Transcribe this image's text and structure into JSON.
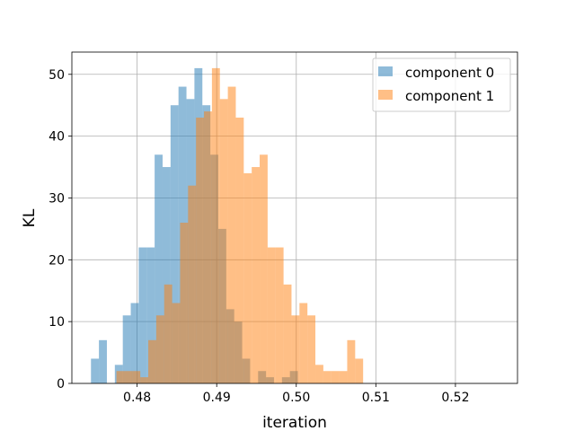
{
  "chart_data": {
    "type": "histogram",
    "xlabel": "iteration",
    "ylabel": "KL",
    "xlim": [
      0.4718,
      0.5278
    ],
    "ylim": [
      0,
      53.6
    ],
    "grid": true,
    "legend_position": "top-right",
    "x_ticks": [
      0.48,
      0.49,
      0.5,
      0.51,
      0.52
    ],
    "x_tick_labels": [
      "0.48",
      "0.49",
      "0.50",
      "0.51",
      "0.52"
    ],
    "y_ticks": [
      0,
      10,
      20,
      30,
      40,
      50
    ],
    "y_tick_labels": [
      "0",
      "10",
      "20",
      "30",
      "40",
      "50"
    ],
    "series": [
      {
        "name": "component 0",
        "color": "#1f77b4",
        "opacity": 0.5,
        "bin_start": 0.4742,
        "bin_width": 0.001,
        "values": [
          4,
          7,
          0,
          3,
          11,
          13,
          22,
          22,
          37,
          35,
          45,
          48,
          46,
          51,
          45,
          37,
          25,
          12,
          10,
          4,
          0,
          2,
          1,
          0,
          1,
          2
        ]
      },
      {
        "name": "component 1",
        "color": "#ff7f0e",
        "opacity": 0.5,
        "bin_start": 0.4774,
        "bin_width": 0.001,
        "values": [
          2,
          2,
          2,
          1,
          7,
          11,
          16,
          13,
          26,
          32,
          43,
          44,
          51,
          46,
          48,
          43,
          34,
          35,
          37,
          22,
          22,
          16,
          11,
          13,
          11,
          3,
          2,
          2,
          2,
          7,
          4
        ]
      }
    ]
  }
}
